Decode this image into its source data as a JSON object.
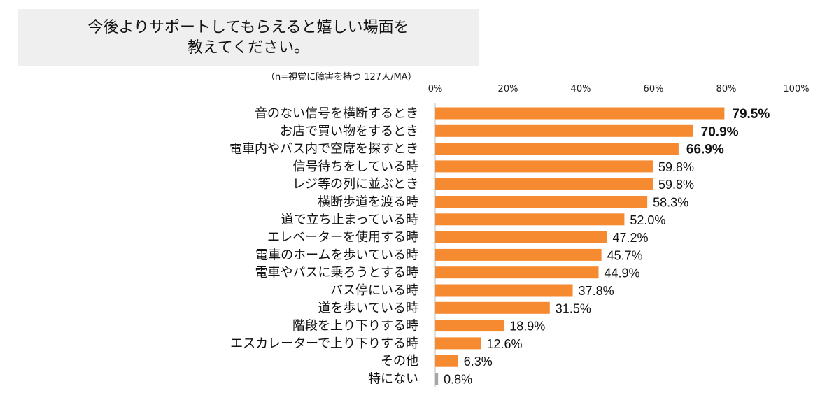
{
  "chart_data": {
    "type": "bar",
    "orientation": "horizontal",
    "title_lines": [
      "今後よりサポートしてもらえると嬉しい場面を",
      "教えてください。"
    ],
    "note": "（n=視覚に障害を持つ 127人/MA）",
    "xlim": [
      0,
      100
    ],
    "x_ticks": [
      "0%",
      "20%",
      "40%",
      "60%",
      "80%",
      "100%"
    ],
    "categories": [
      "音のない信号を横断するとき",
      "お店で買い物をするとき",
      "電車内やバス内で空席を探すとき",
      "信号待ちをしている時",
      "レジ等の列に並ぶとき",
      "横断歩道を渡る時",
      "道で立ち止まっている時",
      "エレベーターを使用する時",
      "電車のホームを歩いている時",
      "電車やバスに乗ろうとする時",
      "バス停にいる時",
      "道を歩いている時",
      "階段を上り下りする時",
      "エスカレーターで上り下りする時",
      "その他",
      "特にない"
    ],
    "values": [
      79.5,
      70.9,
      66.9,
      59.8,
      59.8,
      58.3,
      52.0,
      47.2,
      45.7,
      44.9,
      37.8,
      31.5,
      18.9,
      12.6,
      6.3,
      0.8
    ],
    "value_labels": [
      "79.5%",
      "70.9%",
      "66.9%",
      "59.8%",
      "59.8%",
      "58.3%",
      "52.0%",
      "47.2%",
      "45.7%",
      "44.9%",
      "37.8%",
      "31.5%",
      "18.9%",
      "12.6%",
      "6.3%",
      "0.8%"
    ],
    "bold_top_n": 3,
    "bar_color": "#f58a30",
    "other_bar_color": "#a6a6a6",
    "grid": false
  }
}
